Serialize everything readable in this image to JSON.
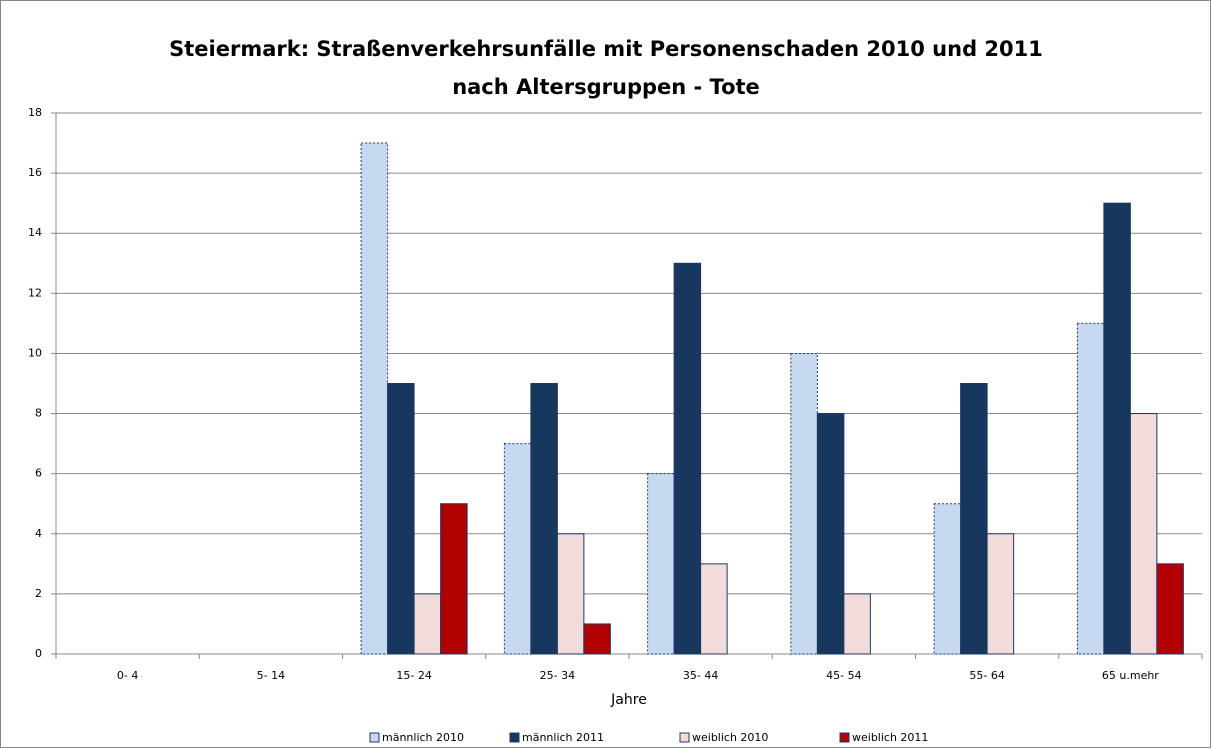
{
  "chart_data": {
    "type": "bar",
    "title": [
      "Steiermark: Straßenverkehrsunfälle mit Personenschaden 2010 und 2011",
      "nach Altersgruppen - Tote"
    ],
    "x_label": "Jahre",
    "categories": [
      "0- 4",
      "5- 14",
      "15- 24",
      "25- 34",
      "35- 44",
      "45- 54",
      "55- 64",
      "65 u.mehr"
    ],
    "series": [
      {
        "name": "männlich 2010",
        "color": "#c6d9f1",
        "values": [
          0,
          0,
          17,
          7,
          6,
          10,
          5,
          11
        ]
      },
      {
        "name": "männlich 2011",
        "color": "#17375e",
        "values": [
          0,
          0,
          9,
          9,
          13,
          8,
          9,
          15
        ]
      },
      {
        "name": "weiblich 2010",
        "color": "#f2dcdb",
        "values": [
          0,
          0,
          2,
          4,
          3,
          2,
          4,
          8
        ]
      },
      {
        "name": "weiblich 2011",
        "color": "#b00000",
        "values": [
          0,
          0,
          5,
          1,
          0,
          0,
          0,
          3
        ]
      }
    ],
    "ylim": [
      0,
      18
    ],
    "yticks": [
      0,
      2,
      4,
      6,
      8,
      10,
      12,
      14,
      16,
      18
    ],
    "grid": true,
    "legend": "bottom"
  }
}
